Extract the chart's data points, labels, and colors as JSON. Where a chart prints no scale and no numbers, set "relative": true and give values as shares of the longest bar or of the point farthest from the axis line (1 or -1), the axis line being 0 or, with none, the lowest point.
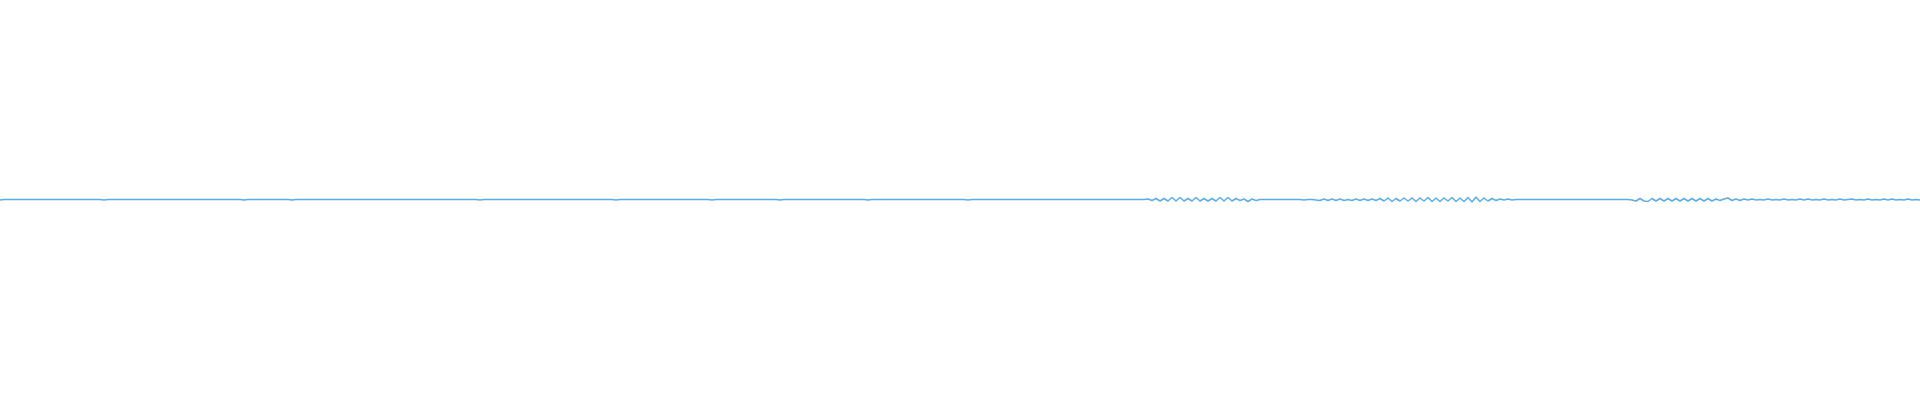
{
  "chart_data": {
    "type": "line",
    "relative": true,
    "marker": "none",
    "color": "#5dade2",
    "categories": [
      null,
      null,
      null,
      null,
      null,
      null,
      null,
      null,
      null,
      null,
      null,
      null,
      null,
      null,
      null,
      null,
      null,
      null,
      null,
      null,
      null,
      null,
      null,
      null,
      null,
      null,
      null,
      null,
      null,
      null,
      null,
      null,
      null,
      null,
      null,
      null,
      null,
      null,
      null,
      null,
      null,
      null,
      null,
      null,
      null,
      null,
      null,
      null,
      null,
      null,
      null,
      null,
      null,
      null,
      null,
      null,
      null,
      null,
      null,
      null,
      null,
      null,
      null,
      null,
      null,
      null,
      null,
      null,
      null,
      null,
      null,
      null,
      null,
      null,
      null,
      null,
      null,
      null,
      null,
      null,
      null,
      null,
      null,
      null,
      null,
      null,
      null,
      null,
      null,
      null,
      null,
      null,
      null,
      null,
      null,
      null,
      null,
      null,
      null,
      null,
      null,
      null,
      null,
      null,
      null,
      null,
      null,
      null,
      null,
      null,
      null,
      null,
      null,
      null,
      null,
      null,
      null,
      null,
      null,
      null,
      null,
      null,
      null,
      null,
      null,
      null,
      null,
      null,
      null,
      null,
      null,
      null,
      null,
      null,
      null,
      null,
      null,
      null,
      null,
      null,
      null,
      null,
      null,
      null,
      null,
      null,
      null,
      null,
      null,
      null,
      null,
      null,
      null,
      null,
      null,
      null,
      null,
      null,
      null,
      null,
      null,
      null,
      null,
      null,
      null,
      null,
      null,
      null,
      null,
      null,
      null,
      null,
      null,
      null,
      null,
      null,
      null,
      null,
      null,
      null,
      null,
      null,
      null,
      null,
      null,
      null,
      null,
      null,
      null,
      null,
      null,
      null,
      null,
      null,
      null,
      null,
      null,
      null,
      null,
      null,
      null,
      null,
      null,
      null,
      null,
      null,
      null,
      null,
      null,
      null,
      null,
      null,
      null,
      null,
      null,
      null,
      null,
      null,
      null,
      null,
      null,
      null,
      null,
      null,
      null,
      null,
      null,
      null,
      null,
      null,
      null,
      null,
      null,
      null,
      null,
      null,
      null,
      null,
      null,
      null,
      null,
      null,
      null,
      null,
      null,
      null,
      null,
      null,
      null,
      null,
      null,
      null,
      null,
      null,
      null,
      null,
      null,
      null,
      null,
      null,
      null,
      null,
      null,
      null,
      null,
      null,
      null,
      null,
      null,
      null,
      null,
      null,
      null,
      null,
      null,
      null,
      null,
      null,
      null,
      null,
      null,
      null,
      null,
      null,
      null,
      null,
      null,
      null,
      null,
      null,
      null,
      null,
      null,
      null,
      null,
      null,
      null,
      null,
      null,
      null,
      null,
      null,
      null,
      null,
      null,
      null,
      null,
      null,
      null,
      null,
      null,
      null,
      null,
      null,
      null,
      null,
      null,
      null,
      null,
      null,
      null,
      null,
      null,
      null,
      null,
      null,
      null,
      null,
      null,
      null,
      null,
      null,
      null,
      null,
      null,
      null,
      null,
      null,
      null,
      null,
      null,
      null,
      null,
      null,
      null,
      null,
      null,
      null,
      null,
      null,
      null,
      null,
      null,
      null,
      null,
      null,
      null,
      null,
      null,
      null,
      null,
      null,
      null,
      null,
      null,
      null,
      null,
      null,
      null,
      null,
      null,
      null,
      null,
      null,
      null,
      null,
      null,
      null,
      null,
      null,
      null,
      null,
      null,
      null,
      null,
      null,
      null,
      null,
      null,
      null,
      null,
      null,
      null,
      null,
      null,
      null,
      null,
      null,
      null,
      null,
      null,
      null,
      null,
      null,
      null,
      null,
      null,
      null,
      null,
      null,
      null,
      null,
      null,
      null,
      null,
      null,
      null,
      null,
      null,
      null,
      null,
      null,
      null,
      null,
      null,
      null,
      null,
      null,
      null,
      null,
      null,
      null,
      null,
      null,
      null,
      null,
      null,
      null,
      null,
      null,
      null,
      null,
      null,
      null,
      null,
      null,
      null,
      null,
      null,
      null,
      null,
      null,
      null,
      null,
      null,
      null,
      null,
      null,
      null,
      null,
      null,
      null,
      null,
      null,
      null,
      null,
      null,
      null,
      null,
      null,
      null,
      null,
      null,
      null,
      null,
      null,
      null,
      null,
      null,
      null,
      null
    ],
    "values": [
      0.4,
      0.5,
      0.5,
      0.5,
      0.5,
      0.5,
      0.5,
      0.5,
      0.5,
      0.5,
      0.5,
      0.5,
      0.5,
      0.5,
      0.5,
      0.5,
      0.5,
      0.5,
      0.5,
      0.5,
      0.5,
      0.5,
      0.5,
      0.5,
      0.5,
      0.5,
      0.4,
      0.5,
      0.5,
      0.5,
      0.5,
      0.5,
      0.5,
      0.5,
      0.5,
      0.5,
      0.5,
      0.5,
      0.5,
      0.5,
      0.5,
      0.5,
      0.5,
      0.5,
      0.5,
      0.5,
      0.5,
      0.5,
      0.5,
      0.5,
      0.5,
      0.5,
      0.5,
      0.5,
      0.5,
      0.5,
      0.5,
      0.5,
      0.5,
      0.5,
      0.5,
      0.4,
      0.5,
      0.5,
      0.5,
      0.5,
      0.5,
      0.5,
      0.5,
      0.5,
      0.5,
      0.5,
      0.5,
      0.4,
      0.5,
      0.5,
      0.5,
      0.5,
      0.5,
      0.5,
      0.5,
      0.5,
      0.5,
      0.5,
      0.5,
      0.5,
      0.5,
      0.5,
      0.5,
      0.5,
      0.5,
      0.5,
      0.5,
      0.5,
      0.5,
      0.5,
      0.5,
      0.5,
      0.5,
      0.5,
      0.5,
      0.5,
      0.5,
      0.5,
      0.5,
      0.5,
      0.5,
      0.5,
      0.5,
      0.5,
      0.5,
      0.5,
      0.5,
      0.5,
      0.5,
      0.5,
      0.5,
      0.5,
      0.5,
      0.5,
      0.4,
      0.5,
      0.5,
      0.5,
      0.5,
      0.5,
      0.5,
      0.5,
      0.5,
      0.5,
      0.5,
      0.5,
      0.5,
      0.5,
      0.5,
      0.5,
      0.5,
      0.5,
      0.5,
      0.5,
      0.5,
      0.5,
      0.5,
      0.5,
      0.5,
      0.5,
      0.5,
      0.5,
      0.5,
      0.5,
      0.5,
      0.5,
      0.5,
      0.5,
      0.4,
      0.5,
      0.5,
      0.5,
      0.5,
      0.5,
      0.5,
      0.5,
      0.5,
      0.5,
      0.5,
      0.5,
      0.5,
      0.5,
      0.5,
      0.5,
      0.5,
      0.5,
      0.5,
      0.5,
      0.5,
      0.5,
      0.5,
      0.5,
      0.4,
      0.5,
      0.5,
      0.5,
      0.5,
      0.5,
      0.5,
      0.5,
      0.5,
      0.5,
      0.5,
      0.5,
      0.5,
      0.5,
      0.5,
      0.5,
      0.5,
      0.4,
      0.5,
      0.5,
      0.5,
      0.5,
      0.5,
      0.5,
      0.5,
      0.5,
      0.5,
      0.5,
      0.5,
      0.5,
      0.5,
      0.5,
      0.5,
      0.5,
      0.5,
      0.5,
      0.5,
      0.5,
      0.5,
      0.4,
      0.5,
      0.5,
      0.5,
      0.5,
      0.5,
      0.5,
      0.5,
      0.5,
      0.5,
      0.5,
      0.5,
      0.5,
      0.5,
      0.5,
      0.5,
      0.5,
      0.5,
      0.5,
      0.5,
      0.5,
      0.5,
      0.5,
      0.5,
      0.5,
      0.4,
      0.5,
      0.5,
      0.5,
      0.5,
      0.5,
      0.5,
      0.5,
      0.5,
      0.5,
      0.5,
      0.5,
      0.5,
      0.5,
      0.5,
      0.5,
      0.5,
      0.5,
      0.5,
      0.5,
      0.5,
      0.5,
      0.5,
      0.5,
      0.5,
      0.5,
      0.5,
      0.5,
      0.5,
      0.5,
      0.5,
      0.5,
      0.5,
      0.5,
      0.5,
      0.5,
      0.5,
      0.5,
      0.5,
      0.5,
      0.5,
      0.5,
      0.5,
      0.5,
      0.5,
      0.6,
      0.3,
      0.7,
      0.2,
      0.7,
      0.2,
      0.9,
      0.2,
      0.9,
      0.2,
      0.7,
      0.2,
      0.9,
      0.2,
      0.7,
      0.2,
      0.7,
      0.2,
      0.9,
      0.2,
      0.9,
      0.2,
      0.7,
      0.3,
      0.6,
      0.1,
      0.6,
      0.3,
      0.5,
      0.5,
      0.5,
      0.5,
      0.5,
      0.5,
      0.5,
      0.5,
      0.5,
      0.5,
      0.5,
      0.4,
      0.5,
      0.5,
      0.4,
      0.3,
      0.6,
      0.3,
      0.6,
      0.3,
      0.6,
      0.3,
      0.5,
      0.3,
      0.6,
      0.3,
      0.6,
      0.3,
      0.6,
      0.3,
      0.7,
      0.2,
      0.8,
      0.1,
      0.7,
      0.2,
      0.8,
      0.2,
      0.8,
      0.1,
      0.8,
      0.2,
      0.9,
      0.1,
      0.8,
      0.1,
      0.8,
      0.2,
      0.9,
      0.1,
      0.8,
      0.1,
      0.9,
      0,
      1,
      0.1,
      0.8,
      0.2,
      0.7,
      0.3,
      0.6,
      0.4,
      0.6,
      0.4,
      0.5,
      0.5,
      0.5,
      0.5,
      0.5,
      0.5,
      0.5,
      0.5,
      0.5,
      0.5,
      0.5,
      0.5,
      0.5,
      0.5,
      0.5,
      0.5,
      0.5,
      0.5,
      0.5,
      0.5,
      0.5,
      0.5,
      0.5,
      0.5,
      0.5,
      0.5,
      0.5,
      0.5,
      0.5,
      0.4,
      0.2,
      0.7,
      0.2,
      0.1,
      0.7,
      0.2,
      0.7,
      0.2,
      0.7,
      0.2,
      0.7,
      0.2,
      0.7,
      0.2,
      0.7,
      0.2,
      0.7,
      0.2,
      0.7,
      0.2,
      0.6,
      0.3,
      0.6,
      0.8,
      0.3,
      0.6,
      0.3,
      0.6,
      0.4,
      0.6,
      0.4,
      0.5,
      0.4,
      0.6,
      0.4,
      0.5,
      0.4,
      0.6,
      0.4,
      0.5,
      0.4,
      0.6,
      0.4,
      0.6,
      0.4,
      0.5,
      0.4,
      0.6,
      0.4,
      0.5,
      0.4,
      0.6,
      0.4,
      0.5,
      0.6,
      0.4,
      0.5,
      0.4,
      0.6,
      0.4,
      0.5,
      0.4,
      0.6,
      0.4,
      0.6,
      0.4,
      0.5,
      0.4,
      0.6,
      0.4,
      0.5,
      0.4
    ]
  }
}
